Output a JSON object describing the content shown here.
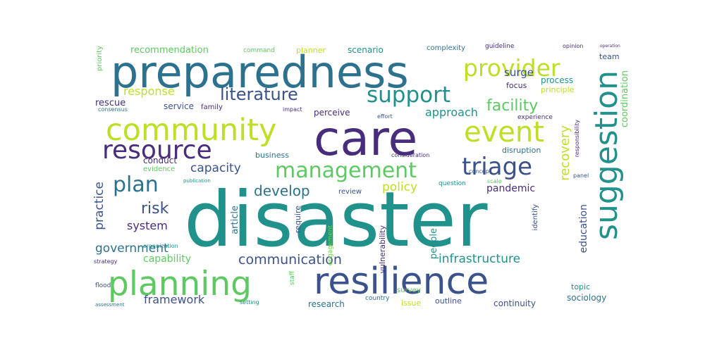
{
  "palette": {
    "yellow": "#bddf26",
    "green": "#5ec962",
    "teal": "#21918c",
    "steel": "#2c728e",
    "blue": "#3b528b",
    "indigo": "#472d7b",
    "lime": "#7ad151"
  },
  "words": [
    {
      "text": "disaster",
      "color": "teal"
    },
    {
      "text": "preparedness",
      "color": "steel"
    },
    {
      "text": "care",
      "color": "indigo"
    },
    {
      "text": "community",
      "color": "yellow"
    },
    {
      "text": "resilience",
      "color": "blue"
    },
    {
      "text": "planning",
      "color": "green"
    },
    {
      "text": "suggestion",
      "color": "teal"
    },
    {
      "text": "event",
      "color": "yellow"
    },
    {
      "text": "resource",
      "color": "indigo"
    },
    {
      "text": "support",
      "color": "teal"
    },
    {
      "text": "provider",
      "color": "yellow"
    },
    {
      "text": "management",
      "color": "green"
    },
    {
      "text": "triage",
      "color": "blue"
    },
    {
      "text": "plan",
      "color": "steel"
    },
    {
      "text": "literature",
      "color": "blue"
    },
    {
      "text": "facility",
      "color": "green"
    },
    {
      "text": "communication",
      "color": "blue"
    },
    {
      "text": "infrastructure",
      "color": "teal"
    },
    {
      "text": "recovery",
      "color": "yellow"
    },
    {
      "text": "coordination",
      "color": "green"
    },
    {
      "text": "response",
      "color": "yellow"
    },
    {
      "text": "risk",
      "color": "blue"
    },
    {
      "text": "develop",
      "color": "steel"
    },
    {
      "text": "capacity",
      "color": "blue"
    },
    {
      "text": "government",
      "color": "steel"
    },
    {
      "text": "framework",
      "color": "blue"
    },
    {
      "text": "system",
      "color": "indigo"
    },
    {
      "text": "policy",
      "color": "yellow"
    },
    {
      "text": "practice",
      "color": "blue"
    },
    {
      "text": "capability",
      "color": "green"
    },
    {
      "text": "approach",
      "color": "teal"
    },
    {
      "text": "surge",
      "color": "blue"
    },
    {
      "text": "pandemic",
      "color": "indigo"
    },
    {
      "text": "education",
      "color": "blue"
    },
    {
      "text": "article",
      "color": "steel"
    },
    {
      "text": "people",
      "color": "teal"
    },
    {
      "text": "recommendation",
      "color": "green"
    },
    {
      "text": "rescue",
      "color": "indigo"
    },
    {
      "text": "perceive",
      "color": "indigo"
    },
    {
      "text": "process",
      "color": "teal"
    },
    {
      "text": "team",
      "color": "blue"
    },
    {
      "text": "focus",
      "color": "indigo"
    },
    {
      "text": "principle",
      "color": "yellow"
    },
    {
      "text": "service",
      "color": "blue"
    },
    {
      "text": "scenario",
      "color": "teal"
    },
    {
      "text": "planner",
      "color": "yellow"
    },
    {
      "text": "complexity",
      "color": "steel"
    },
    {
      "text": "guideline",
      "color": "indigo"
    },
    {
      "text": "command",
      "color": "green"
    },
    {
      "text": "priority",
      "color": "green"
    },
    {
      "text": "family",
      "color": "indigo"
    },
    {
      "text": "conduct",
      "color": "indigo"
    },
    {
      "text": "business",
      "color": "steel"
    },
    {
      "text": "disruption",
      "color": "steel"
    },
    {
      "text": "experience",
      "color": "indigo"
    },
    {
      "text": "evidence",
      "color": "green"
    },
    {
      "text": "research",
      "color": "steel"
    },
    {
      "text": "outline",
      "color": "blue"
    },
    {
      "text": "continuity",
      "color": "blue"
    },
    {
      "text": "sociology",
      "color": "steel"
    },
    {
      "text": "topic",
      "color": "teal"
    },
    {
      "text": "survey",
      "color": "green"
    },
    {
      "text": "issue",
      "color": "yellow"
    },
    {
      "text": "country",
      "color": "steel"
    },
    {
      "text": "review",
      "color": "blue"
    },
    {
      "text": "require",
      "color": "blue"
    },
    {
      "text": "vulnerability",
      "color": "indigo"
    },
    {
      "text": "engagement",
      "color": "lime"
    },
    {
      "text": "identify",
      "color": "blue"
    },
    {
      "text": "question",
      "color": "teal"
    },
    {
      "text": "scale",
      "color": "green"
    },
    {
      "text": "consensus",
      "color": "steel"
    },
    {
      "text": "organization",
      "color": "teal"
    },
    {
      "text": "strategy",
      "color": "indigo"
    },
    {
      "text": "flood",
      "color": "blue"
    },
    {
      "text": "assessment",
      "color": "steel"
    },
    {
      "text": "setting",
      "color": "teal"
    },
    {
      "text": "staff",
      "color": "green"
    },
    {
      "text": "responsibility",
      "color": "indigo"
    },
    {
      "text": "panel",
      "color": "blue"
    },
    {
      "text": "concept",
      "color": "blue"
    },
    {
      "text": "consideration",
      "color": "indigo"
    },
    {
      "text": "impact",
      "color": "indigo"
    },
    {
      "text": "effort",
      "color": "blue"
    },
    {
      "text": "opinion",
      "color": "indigo"
    },
    {
      "text": "operation",
      "color": "indigo"
    },
    {
      "text": "publication",
      "color": "teal"
    }
  ]
}
